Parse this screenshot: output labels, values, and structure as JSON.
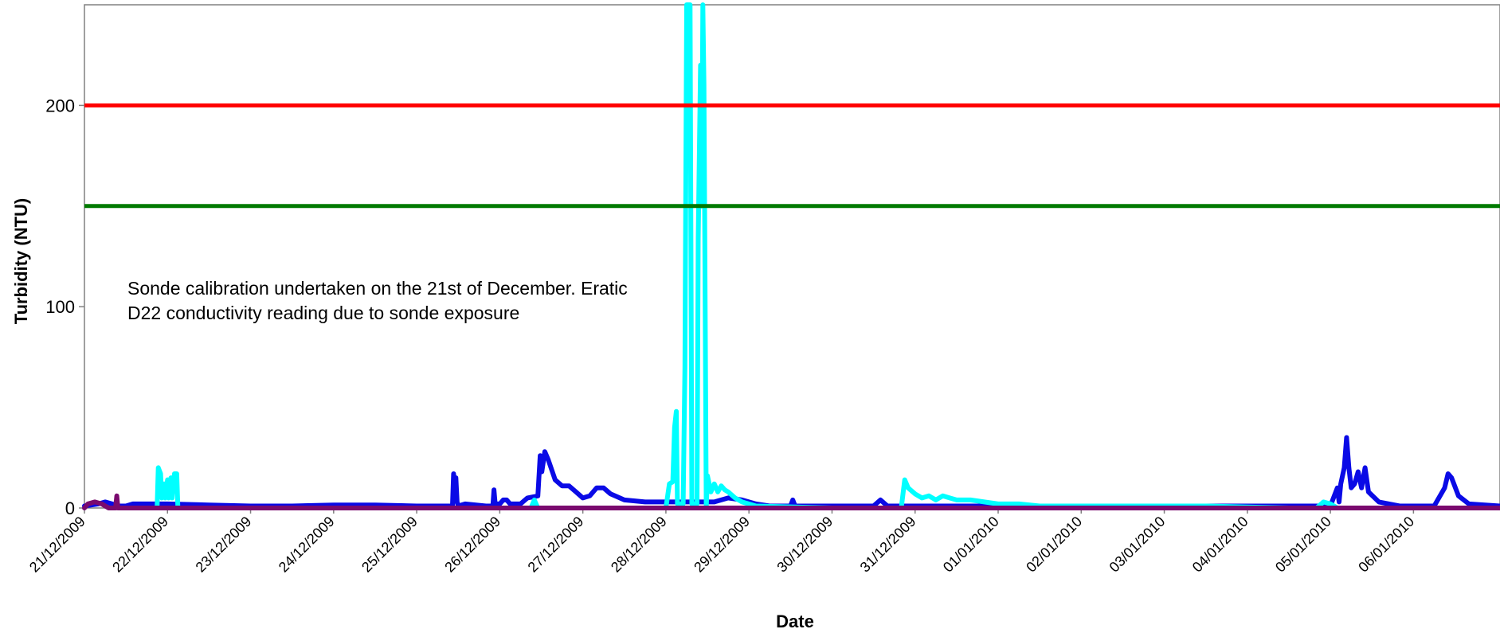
{
  "chart_data": {
    "type": "line",
    "title": "",
    "xlabel": "Date",
    "ylabel": "Turbidity (NTU)",
    "ylim": [
      0,
      250
    ],
    "yticks": [
      0,
      100,
      200
    ],
    "x_ticks": [
      "21/12/2009",
      "22/12/2009",
      "23/12/2009",
      "24/12/2009",
      "25/12/2009",
      "26/12/2009",
      "27/12/2009",
      "28/12/2009",
      "29/12/2009",
      "30/12/2009",
      "31/12/2009",
      "01/01/2010",
      "02/01/2010",
      "03/01/2010",
      "04/01/2010",
      "05/01/2010",
      "06/01/2010"
    ],
    "xlim": [
      "21/12/2009 00:00",
      "07/01/2010 01:00"
    ],
    "grid": false,
    "annotation": [
      "Sonde calibration undertaken on the 21st of December. Eratic",
      "D22 conductivity reading due to sonde exposure"
    ],
    "threshold_lines": [
      {
        "value": 200,
        "color": "#ff0000"
      },
      {
        "value": 150,
        "color": "#007a00"
      }
    ],
    "series": [
      {
        "color": "#0a0ae6",
        "points": [
          [
            "21/12/2009 00:00",
            1
          ],
          [
            "21/12/2009 04:00",
            2
          ],
          [
            "21/12/2009 06:00",
            3
          ],
          [
            "21/12/2009 08:00",
            2
          ],
          [
            "21/12/2009 10:00",
            1
          ],
          [
            "21/12/2009 12:00",
            1
          ],
          [
            "21/12/2009 14:00",
            2
          ],
          [
            "21/12/2009 18:00",
            2
          ],
          [
            "22/12/2009 00:00",
            2
          ],
          [
            "22/12/2009 12:00",
            1.5
          ],
          [
            "23/12/2009 00:00",
            1
          ],
          [
            "23/12/2009 12:00",
            1
          ],
          [
            "24/12/2009 00:00",
            1.5
          ],
          [
            "24/12/2009 12:00",
            1.5
          ],
          [
            "25/12/2009 00:00",
            1
          ],
          [
            "25/12/2009 12:00",
            1
          ],
          [
            "25/12/2009 10:20",
            1
          ],
          [
            "25/12/2009 10:40",
            17
          ],
          [
            "25/12/2009 11:00",
            12
          ],
          [
            "25/12/2009 11:20",
            15
          ],
          [
            "25/12/2009 11:40",
            3
          ],
          [
            "25/12/2009 14:00",
            2
          ],
          [
            "25/12/2009 20:00",
            1
          ],
          [
            "25/12/2009 22:00",
            1
          ],
          [
            "25/12/2009 22:20",
            9
          ],
          [
            "25/12/2009 22:40",
            2
          ],
          [
            "26/12/2009 00:00",
            2
          ],
          [
            "26/12/2009 01:00",
            4
          ],
          [
            "26/12/2009 02:00",
            4
          ],
          [
            "26/12/2009 03:00",
            2
          ],
          [
            "26/12/2009 06:00",
            2
          ],
          [
            "26/12/2009 08:00",
            5
          ],
          [
            "26/12/2009 11:00",
            6
          ],
          [
            "26/12/2009 11:40",
            26
          ],
          [
            "26/12/2009 12:10",
            18
          ],
          [
            "26/12/2009 13:00",
            28
          ],
          [
            "26/12/2009 14:00",
            24
          ],
          [
            "26/12/2009 16:00",
            14
          ],
          [
            "26/12/2009 18:00",
            11
          ],
          [
            "26/12/2009 20:00",
            11
          ],
          [
            "26/12/2009 22:00",
            8
          ],
          [
            "27/12/2009 00:00",
            5
          ],
          [
            "27/12/2009 02:00",
            6
          ],
          [
            "27/12/2009 04:00",
            10
          ],
          [
            "27/12/2009 06:00",
            10
          ],
          [
            "27/12/2009 08:00",
            7
          ],
          [
            "27/12/2009 12:00",
            4
          ],
          [
            "27/12/2009 18:00",
            3
          ],
          [
            "28/12/2009 00:00",
            3
          ],
          [
            "28/12/2009 06:00",
            3
          ],
          [
            "28/12/2009 10:00",
            3
          ],
          [
            "28/12/2009 14:00",
            3
          ],
          [
            "28/12/2009 18:00",
            5
          ],
          [
            "28/12/2009 22:00",
            4
          ],
          [
            "29/12/2009 02:00",
            2
          ],
          [
            "29/12/2009 06:00",
            1
          ],
          [
            "29/12/2009 12:00",
            1
          ],
          [
            "29/12/2009 12:40",
            4
          ],
          [
            "29/12/2009 13:20",
            1
          ],
          [
            "30/12/2009 00:00",
            1
          ],
          [
            "30/12/2009 08:00",
            1
          ],
          [
            "30/12/2009 12:00",
            1
          ],
          [
            "30/12/2009 14:00",
            4
          ],
          [
            "30/12/2009 16:00",
            1
          ],
          [
            "31/12/2009 00:00",
            1
          ],
          [
            "31/12/2009 12:00",
            1
          ],
          [
            "01/01/2010 00:00",
            1
          ],
          [
            "01/01/2010 12:00",
            1
          ],
          [
            "02/01/2010 00:00",
            1
          ],
          [
            "03/01/2010 00:00",
            1
          ],
          [
            "04/01/2010 00:00",
            1
          ],
          [
            "04/01/2010 14:00",
            1
          ],
          [
            "05/01/2010 00:00",
            1
          ],
          [
            "05/01/2010 02:00",
            10
          ],
          [
            "05/01/2010 02:30",
            3
          ],
          [
            "05/01/2010 03:00",
            12
          ],
          [
            "05/01/2010 04:00",
            20
          ],
          [
            "05/01/2010 04:40",
            35
          ],
          [
            "05/01/2010 05:20",
            20
          ],
          [
            "05/01/2010 06:00",
            10
          ],
          [
            "05/01/2010 07:00",
            12
          ],
          [
            "05/01/2010 08:00",
            18
          ],
          [
            "05/01/2010 09:00",
            10
          ],
          [
            "05/01/2010 10:00",
            20
          ],
          [
            "05/01/2010 11:00",
            8
          ],
          [
            "05/01/2010 14:00",
            3
          ],
          [
            "05/01/2010 20:00",
            1
          ],
          [
            "06/01/2010 06:00",
            1
          ],
          [
            "06/01/2010 09:00",
            10
          ],
          [
            "06/01/2010 10:00",
            17
          ],
          [
            "06/01/2010 11:00",
            15
          ],
          [
            "06/01/2010 13:00",
            6
          ],
          [
            "06/01/2010 16:00",
            2
          ],
          [
            "07/01/2010 01:00",
            1
          ]
        ]
      },
      {
        "color": "#00ffff",
        "points": [
          [
            "21/12/2009 12:00",
            0
          ],
          [
            "21/12/2009 21:00",
            0
          ],
          [
            "21/12/2009 21:20",
            20
          ],
          [
            "21/12/2009 22:00",
            17
          ],
          [
            "21/12/2009 22:20",
            5
          ],
          [
            "21/12/2009 23:00",
            12
          ],
          [
            "21/12/2009 23:20",
            5
          ],
          [
            "22/12/2009 00:00",
            14
          ],
          [
            "22/12/2009 00:20",
            5
          ],
          [
            "22/12/2009 01:00",
            15
          ],
          [
            "22/12/2009 01:20",
            5
          ],
          [
            "22/12/2009 02:00",
            17
          ],
          [
            "22/12/2009 02:40",
            17
          ],
          [
            "22/12/2009 03:00",
            0
          ],
          [
            "26/12/2009 09:00",
            0
          ],
          [
            "26/12/2009 10:00",
            4
          ],
          [
            "26/12/2009 11:00",
            0
          ],
          [
            "27/12/2009 12:00",
            0
          ],
          [
            "28/12/2009 00:00",
            0
          ],
          [
            "28/12/2009 01:00",
            12
          ],
          [
            "28/12/2009 02:00",
            13
          ],
          [
            "28/12/2009 02:30",
            40
          ],
          [
            "28/12/2009 03:00",
            48
          ],
          [
            "28/12/2009 03:20",
            2
          ],
          [
            "28/12/2009 05:00",
            2
          ],
          [
            "28/12/2009 05:30",
            70
          ],
          [
            "28/12/2009 06:00",
            250
          ],
          [
            "28/12/2009 07:00",
            250
          ],
          [
            "28/12/2009 07:30",
            2
          ],
          [
            "28/12/2009 09:00",
            2
          ],
          [
            "28/12/2009 09:20",
            134
          ],
          [
            "28/12/2009 10:00",
            220
          ],
          [
            "28/12/2009 10:20",
            150
          ],
          [
            "28/12/2009 10:40",
            250
          ],
          [
            "28/12/2009 11:00",
            210
          ],
          [
            "28/12/2009 11:40",
            0
          ],
          [
            "28/12/2009 12:00",
            16
          ],
          [
            "28/12/2009 13:00",
            8
          ],
          [
            "28/12/2009 14:00",
            12
          ],
          [
            "28/12/2009 15:00",
            8
          ],
          [
            "28/12/2009 16:00",
            11
          ],
          [
            "28/12/2009 17:00",
            9
          ],
          [
            "28/12/2009 18:00",
            8
          ],
          [
            "28/12/2009 20:00",
            5
          ],
          [
            "28/12/2009 22:00",
            3
          ],
          [
            "29/12/2009 02:00",
            1
          ],
          [
            "30/12/2009 00:00",
            0
          ],
          [
            "30/12/2009 20:00",
            0
          ],
          [
            "30/12/2009 21:00",
            14
          ],
          [
            "30/12/2009 22:00",
            10
          ],
          [
            "31/12/2009 00:00",
            7
          ],
          [
            "31/12/2009 02:00",
            5
          ],
          [
            "31/12/2009 04:00",
            6
          ],
          [
            "31/12/2009 06:00",
            4
          ],
          [
            "31/12/2009 08:00",
            6
          ],
          [
            "31/12/2009 10:00",
            5
          ],
          [
            "31/12/2009 12:00",
            4
          ],
          [
            "31/12/2009 16:00",
            4
          ],
          [
            "31/12/2009 20:00",
            3
          ],
          [
            "01/01/2010 00:00",
            2
          ],
          [
            "01/01/2010 06:00",
            2
          ],
          [
            "01/01/2010 12:00",
            1
          ],
          [
            "02/01/2010 12:00",
            1
          ],
          [
            "03/01/2010 00:00",
            1
          ],
          [
            "03/01/2010 12:00",
            1
          ],
          [
            "04/01/2010 12:00",
            0
          ],
          [
            "04/01/2010 20:00",
            0
          ],
          [
            "04/01/2010 22:00",
            3
          ],
          [
            "05/01/2010 00:00",
            2
          ],
          [
            "05/01/2010 02:00",
            0
          ]
        ]
      },
      {
        "color": "#7a0a6e",
        "points": [
          [
            "21/12/2009 00:00",
            0
          ],
          [
            "21/12/2009 01:00",
            2
          ],
          [
            "21/12/2009 03:00",
            3
          ],
          [
            "21/12/2009 05:00",
            2
          ],
          [
            "21/12/2009 07:00",
            0
          ],
          [
            "21/12/2009 09:00",
            0
          ],
          [
            "21/12/2009 09:20",
            6
          ],
          [
            "21/12/2009 09:40",
            0
          ],
          [
            "22/12/2009 00:00",
            0
          ],
          [
            "07/01/2010 01:00",
            0
          ]
        ]
      }
    ]
  }
}
